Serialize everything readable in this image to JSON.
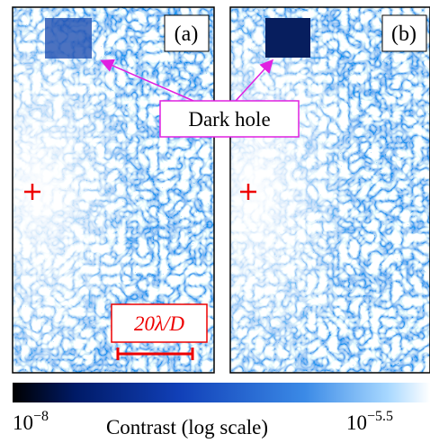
{
  "panels": [
    {
      "label": "(a)"
    },
    {
      "label": "(b)"
    }
  ],
  "annotation": "Dark hole",
  "scale_bar": "20λ/D",
  "colorbar": {
    "min": {
      "base": "10",
      "exponent": "−8"
    },
    "max": {
      "base": "10",
      "exponent": "−5.5"
    },
    "label": "Contrast (log scale)"
  }
}
